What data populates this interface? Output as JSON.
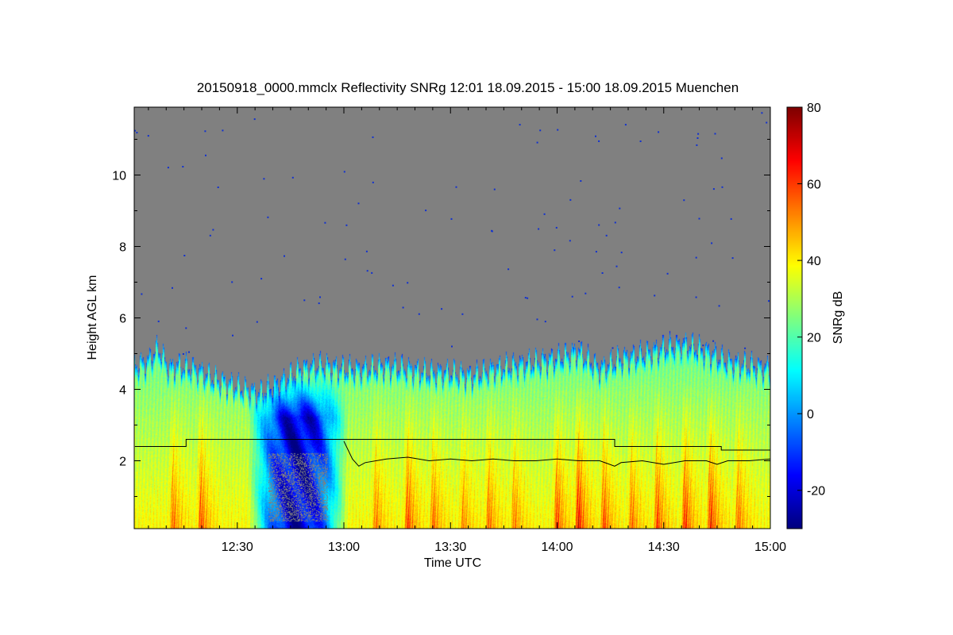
{
  "chart_data": {
    "type": "heatmap",
    "title": "20150918_0000.mmclx Reflectivity SNRg   12:01 18.09.2015 - 15:00 18.09.2015 Muenchen",
    "xlabel": "Time UTC",
    "ylabel": "Height AGL km",
    "xlim": [
      12.0167,
      15.0
    ],
    "ylim": [
      0.1,
      11.9
    ],
    "x_ticks": [
      {
        "value": 12.5,
        "label": "12:30"
      },
      {
        "value": 13.0,
        "label": "13:00"
      },
      {
        "value": 13.5,
        "label": "13:30"
      },
      {
        "value": 14.0,
        "label": "14:00"
      },
      {
        "value": 14.5,
        "label": "14:30"
      },
      {
        "value": 15.0,
        "label": "15:00"
      }
    ],
    "y_ticks": [
      {
        "value": 2,
        "label": "2"
      },
      {
        "value": 4,
        "label": "4"
      },
      {
        "value": 6,
        "label": "6"
      },
      {
        "value": 8,
        "label": "8"
      },
      {
        "value": 10,
        "label": "10"
      }
    ],
    "colorbar": {
      "label": "SNRg dB",
      "range": [
        -30,
        80
      ],
      "ticks": [
        {
          "value": -20,
          "label": "-20"
        },
        {
          "value": 0,
          "label": "0"
        },
        {
          "value": 20,
          "label": "20"
        },
        {
          "value": 40,
          "label": "40"
        },
        {
          "value": 60,
          "label": "60"
        },
        {
          "value": 80,
          "label": "80"
        }
      ],
      "colormap": "jet"
    },
    "no_signal_color": "#808080",
    "echo_top_km": {
      "x": [
        12.02,
        12.08,
        12.13,
        12.18,
        12.22,
        12.3,
        12.4,
        12.5,
        12.6,
        12.7,
        12.8,
        12.9,
        13.0,
        13.1,
        13.2,
        13.3,
        13.4,
        13.5,
        13.6,
        13.7,
        13.8,
        13.9,
        14.0,
        14.1,
        14.2,
        14.3,
        14.4,
        14.5,
        14.6,
        14.7,
        14.8,
        14.9,
        15.0
      ],
      "y": [
        4.7,
        4.8,
        5.2,
        4.6,
        4.7,
        4.6,
        4.3,
        4.1,
        3.9,
        4.2,
        4.6,
        4.7,
        4.6,
        4.6,
        4.7,
        4.6,
        4.5,
        4.5,
        4.4,
        4.6,
        4.7,
        4.8,
        4.9,
        5.1,
        4.6,
        4.9,
        5.0,
        5.2,
        5.3,
        5.1,
        4.8,
        4.7,
        4.6
      ]
    },
    "cores": [
      {
        "t": 12.2,
        "peak_db": 55
      },
      {
        "t": 12.33,
        "peak_db": 60
      },
      {
        "t": 13.15,
        "peak_db": 52
      },
      {
        "t": 13.3,
        "peak_db": 62
      },
      {
        "t": 13.42,
        "peak_db": 55
      },
      {
        "t": 13.56,
        "peak_db": 50
      },
      {
        "t": 13.68,
        "peak_db": 55
      },
      {
        "t": 13.8,
        "peak_db": 52
      },
      {
        "t": 14.0,
        "peak_db": 62
      },
      {
        "t": 14.1,
        "peak_db": 72
      },
      {
        "t": 14.22,
        "peak_db": 60
      },
      {
        "t": 14.35,
        "peak_db": 55
      },
      {
        "t": 14.47,
        "peak_db": 62
      },
      {
        "t": 14.6,
        "peak_db": 65
      },
      {
        "t": 14.72,
        "peak_db": 66
      },
      {
        "t": 14.85,
        "peak_db": 55
      }
    ],
    "dry_region": {
      "t_start": 12.55,
      "t_end": 13.02,
      "snr_db": -22
    },
    "line_upper_km": {
      "x": [
        12.02,
        12.26,
        12.26,
        13.0,
        13.0,
        14.27,
        14.27,
        14.77,
        14.77,
        15.0
      ],
      "y": [
        2.4,
        2.4,
        2.6,
        2.6,
        2.6,
        2.6,
        2.4,
        2.4,
        2.3,
        2.3
      ]
    },
    "line_lower_km": {
      "x": [
        13.0,
        13.04,
        13.07,
        13.1,
        13.2,
        13.3,
        13.4,
        13.5,
        13.6,
        13.7,
        13.8,
        13.9,
        14.0,
        14.1,
        14.2,
        14.27,
        14.3,
        14.4,
        14.5,
        14.6,
        14.7,
        14.75,
        14.8,
        14.9,
        15.0
      ],
      "y": [
        2.55,
        2.05,
        1.85,
        1.95,
        2.05,
        2.1,
        2.0,
        2.05,
        2.0,
        2.05,
        2.0,
        2.0,
        2.05,
        2.0,
        2.0,
        1.85,
        1.95,
        2.0,
        1.9,
        2.0,
        2.0,
        1.9,
        2.0,
        2.0,
        2.05
      ]
    }
  }
}
